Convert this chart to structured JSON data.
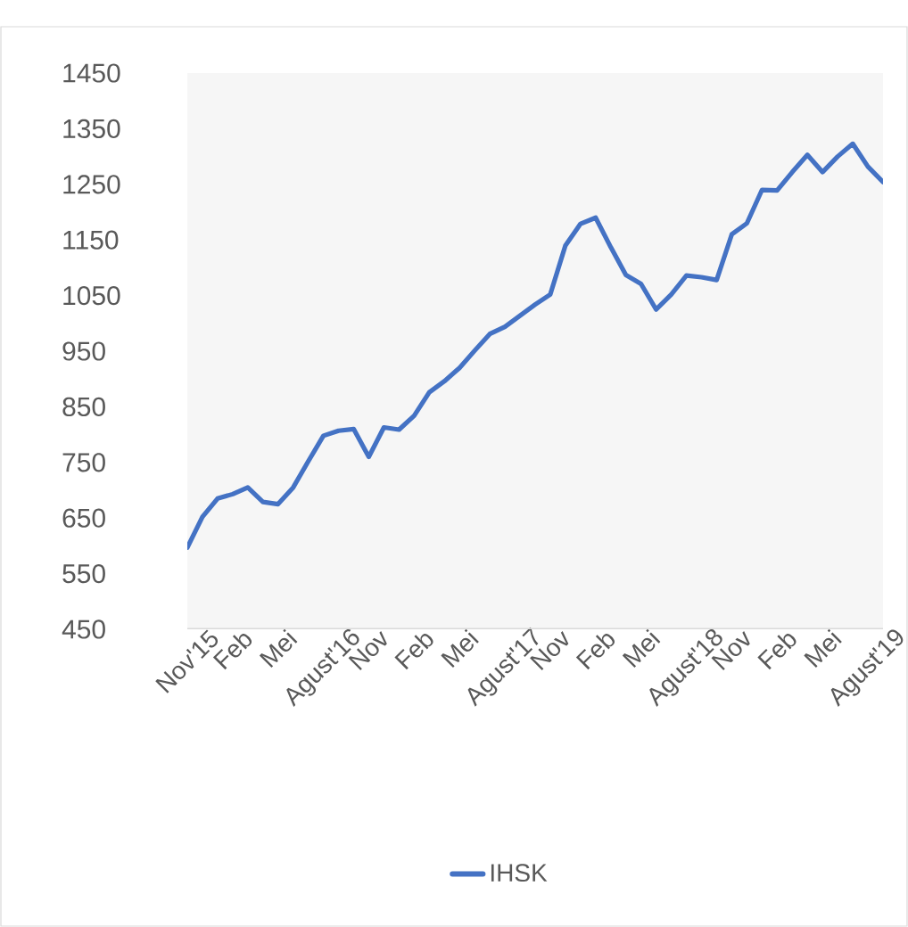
{
  "chart_data": {
    "type": "line",
    "categories": [
      "Nov'15",
      null,
      null,
      "Feb",
      null,
      null,
      "Mei",
      null,
      null,
      "Agust'16",
      null,
      null,
      "Nov",
      null,
      null,
      "Feb",
      null,
      null,
      "Mei",
      null,
      null,
      "Agust'17",
      null,
      null,
      "Nov",
      null,
      null,
      "Feb",
      null,
      null,
      "Mei",
      null,
      null,
      "Agust'18",
      null,
      null,
      "Nov",
      null,
      null,
      "Feb",
      null,
      null,
      "Mei",
      null,
      null,
      "Agust'19",
      null
    ],
    "series": [
      {
        "name": "IHSK",
        "color": "#4472c4",
        "values": [
          597,
          652,
          685,
          693,
          705,
          679,
          675,
          705,
          752,
          798,
          807,
          810,
          760,
          813,
          809,
          834,
          876,
          896,
          920,
          951,
          981,
          994,
          1014,
          1034,
          1052,
          1140,
          1179,
          1190,
          1137,
          1087,
          1071,
          1025,
          1052,
          1086,
          1083,
          1078,
          1160,
          1180,
          1240,
          1239,
          1272,
          1303,
          1272,
          1300,
          1323,
          1282,
          1254
        ]
      }
    ],
    "ylim": [
      450,
      1450
    ],
    "yticks": [
      450,
      550,
      650,
      750,
      850,
      950,
      1050,
      1150,
      1250,
      1350,
      1450
    ],
    "grid": false,
    "legend": "bottom",
    "marker": "none",
    "line_style": "solid"
  }
}
